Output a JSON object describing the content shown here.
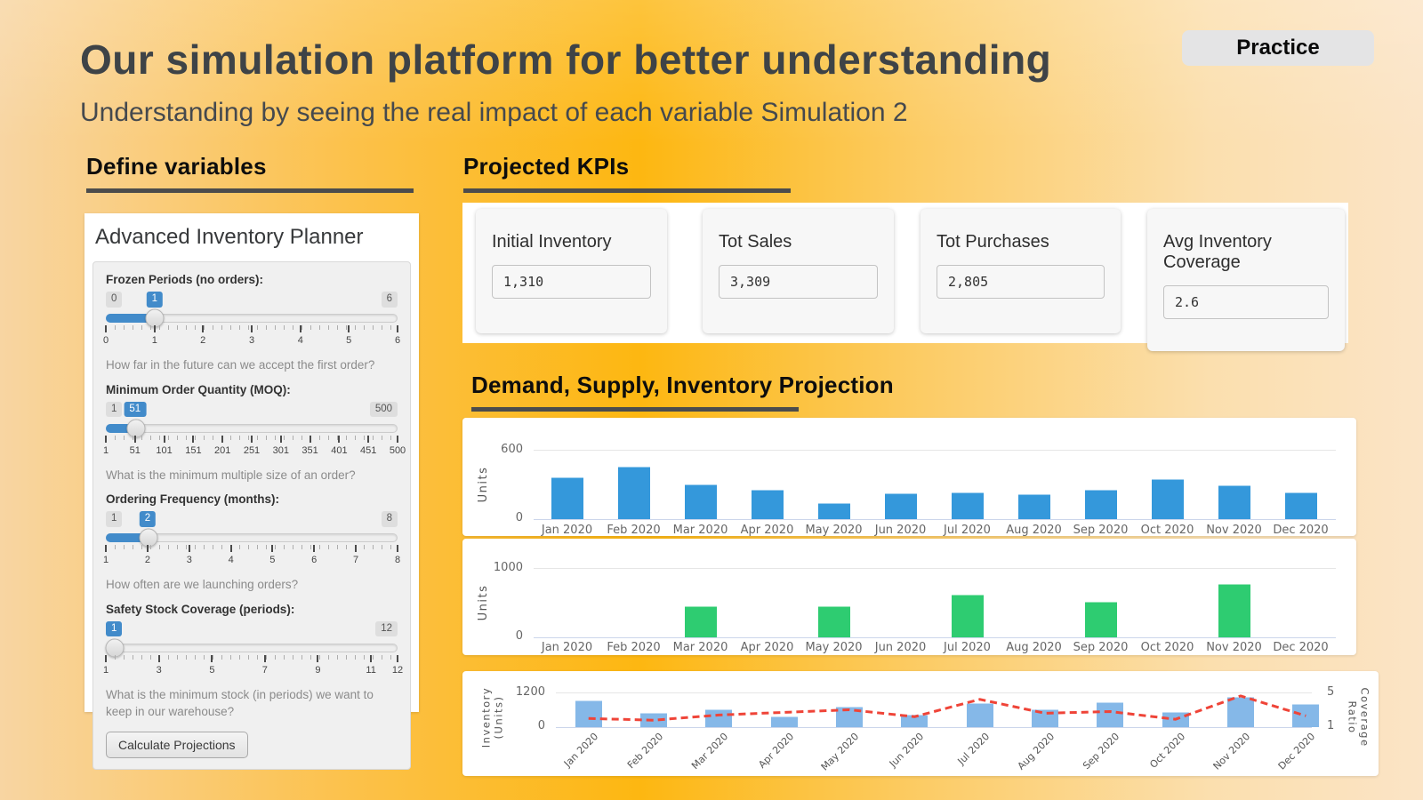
{
  "page": {
    "title": "Our simulation platform for better understanding",
    "subtitle": "Understanding by seeing the real impact of each variable Simulation 2",
    "badge": "Practice"
  },
  "sections": {
    "variables": "Define variables",
    "kpis": "Projected KPIs",
    "charts": "Demand, Supply, Inventory Projection"
  },
  "planner": {
    "title": "Advanced Inventory Planner",
    "button": "Calculate Projections",
    "sliders": [
      {
        "label": "Frozen Periods (no orders):",
        "min": "0",
        "value": "1",
        "max": "6",
        "percent": 16.7,
        "ticks": [
          {
            "label": "0",
            "pos": 0
          },
          {
            "label": "1",
            "pos": 16.7
          },
          {
            "label": "2",
            "pos": 33.3
          },
          {
            "label": "3",
            "pos": 50
          },
          {
            "label": "4",
            "pos": 66.7
          },
          {
            "label": "5",
            "pos": 83.3
          },
          {
            "label": "6",
            "pos": 100
          }
        ],
        "help": "How far in the future can we accept the first order?"
      },
      {
        "label": "Minimum Order Quantity (MOQ):",
        "min": "1",
        "value": "51",
        "max": "500",
        "percent": 10,
        "ticks": [
          {
            "label": "1",
            "pos": 0
          },
          {
            "label": "51",
            "pos": 10
          },
          {
            "label": "101",
            "pos": 20
          },
          {
            "label": "151",
            "pos": 30
          },
          {
            "label": "201",
            "pos": 40
          },
          {
            "label": "251",
            "pos": 50
          },
          {
            "label": "301",
            "pos": 60
          },
          {
            "label": "351",
            "pos": 70
          },
          {
            "label": "401",
            "pos": 80
          },
          {
            "label": "451",
            "pos": 90
          },
          {
            "label": "500",
            "pos": 100
          }
        ],
        "help": "What is the minimum multiple size of an order?"
      },
      {
        "label": "Ordering Frequency (months):",
        "min": "1",
        "value": "2",
        "max": "8",
        "percent": 14.3,
        "ticks": [
          {
            "label": "1",
            "pos": 0
          },
          {
            "label": "2",
            "pos": 14.3
          },
          {
            "label": "3",
            "pos": 28.6
          },
          {
            "label": "4",
            "pos": 42.9
          },
          {
            "label": "5",
            "pos": 57.1
          },
          {
            "label": "6",
            "pos": 71.4
          },
          {
            "label": "7",
            "pos": 85.7
          },
          {
            "label": "8",
            "pos": 100
          }
        ],
        "help": "How often are we launching orders?"
      },
      {
        "label": "Safety Stock Coverage (periods):",
        "min": "",
        "value": "1",
        "max": "12",
        "percent": 0,
        "ticks": [
          {
            "label": "1",
            "pos": 0
          },
          {
            "label": "3",
            "pos": 18.2
          },
          {
            "label": "5",
            "pos": 36.4
          },
          {
            "label": "7",
            "pos": 54.5
          },
          {
            "label": "9",
            "pos": 72.7
          },
          {
            "label": "11",
            "pos": 90.9
          },
          {
            "label": "12",
            "pos": 100
          }
        ],
        "help": "What is the minimum stock (in periods) we want to keep in our warehouse?"
      }
    ]
  },
  "kpis": [
    {
      "label": "Initial Inventory",
      "value": "1,310"
    },
    {
      "label": "Tot Sales",
      "value": "3,309"
    },
    {
      "label": "Tot Purchases",
      "value": "2,805"
    },
    {
      "label": "Avg Inventory Coverage",
      "value": "2.6"
    }
  ],
  "chart_data": [
    {
      "type": "bar",
      "title": "Projected Demand",
      "ylabel": "Units",
      "yticks": [
        "600",
        "0"
      ],
      "ylim": [
        0,
        600
      ],
      "categories": [
        "Jan 2020",
        "Feb 2020",
        "Mar 2020",
        "Apr 2020",
        "May 2020",
        "Jun 2020",
        "Jul 2020",
        "Aug 2020",
        "Sep 2020",
        "Oct 2020",
        "Nov 2020",
        "Dec 2020"
      ],
      "values": [
        360,
        455,
        300,
        255,
        135,
        225,
        230,
        215,
        255,
        345,
        295,
        230
      ],
      "color": "#3498db",
      "grid": true,
      "legend": "none"
    },
    {
      "type": "bar",
      "title": "Projected Supply (Purchases)",
      "ylabel": "Units",
      "yticks": [
        "1000",
        "0"
      ],
      "ylim": [
        0,
        1000
      ],
      "categories": [
        "Jan 2020",
        "Feb 2020",
        "Mar 2020",
        "Apr 2020",
        "May 2020",
        "Jun 2020",
        "Jul 2020",
        "Aug 2020",
        "Sep 2020",
        "Oct 2020",
        "Nov 2020",
        "Dec 2020"
      ],
      "values": [
        0,
        0,
        450,
        0,
        450,
        0,
        620,
        0,
        515,
        0,
        770,
        0
      ],
      "color": "#2ecc71",
      "grid": true,
      "legend": "none"
    },
    {
      "type": "bar+line",
      "title": "Projected Inventory and Coverage Ratio",
      "ylabel": "Inventory (Units)",
      "y2label": "Coverage Ratio",
      "yticks": [
        "1200",
        "0"
      ],
      "y2ticks": [
        "5",
        "1"
      ],
      "ylim": [
        0,
        1200
      ],
      "y2lim": [
        1,
        5
      ],
      "categories": [
        "Jan 2020",
        "Feb 2020",
        "Mar 2020",
        "Apr 2020",
        "May 2020",
        "Jun 2020",
        "Jul 2020",
        "Aug 2020",
        "Sep 2020",
        "Oct 2020",
        "Nov 2020",
        "Dec 2020"
      ],
      "bar_values": [
        915,
        480,
        615,
        360,
        720,
        420,
        820,
        615,
        860,
        535,
        1045,
        790
      ],
      "line_values": [
        2.0,
        1.8,
        2.4,
        2.7,
        3.0,
        2.2,
        4.2,
        2.6,
        2.8,
        1.9,
        4.6,
        2.3
      ],
      "bar_color": "#85b8e8",
      "line_color": "#ef4438",
      "line_style": "dashed",
      "grid": true,
      "legend": "none"
    }
  ],
  "colors": {
    "accent_blue": "#428bca",
    "demand_bar": "#3498db",
    "supply_bar": "#2ecc71",
    "inventory_bar": "#85b8e8",
    "coverage_line": "#ef4438",
    "heading_rule": "#4c4c4c"
  }
}
